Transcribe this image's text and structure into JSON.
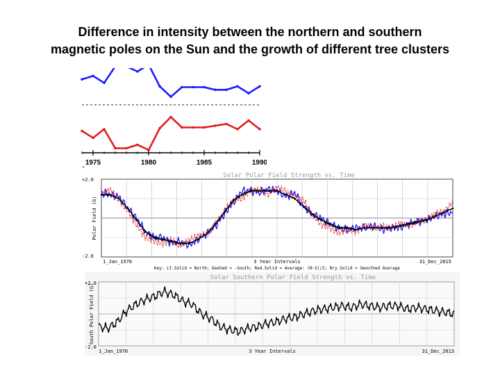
{
  "title": {
    "line1": "Difference in intensity between the northern and southern",
    "line2": "magnetic poles on the Sun and the growth of different tree clusters"
  },
  "colors": {
    "north_blue": "#1a1aff",
    "south_red": "#e41a1a",
    "average_black": "#000000",
    "grid": "#b0b0b0"
  },
  "chart_data": [
    {
      "type": "line",
      "title": "",
      "xlabel": "",
      "ylabel": "",
      "x_ticks": [
        1975,
        1980,
        1985,
        1990
      ],
      "xlim": [
        1974,
        1990
      ],
      "grid": false,
      "legend_mark": "*",
      "series": [
        {
          "color": "#1a1aff",
          "x": [
            1974,
            1975,
            1976,
            1977,
            1978,
            1979,
            1980,
            1981,
            1982,
            1983,
            1984,
            1985,
            1986,
            1987,
            1988,
            1989,
            1990
          ],
          "y": [
            0.55,
            0.75,
            0.35,
            1.3,
            1.3,
            1.0,
            1.4,
            0.15,
            -0.45,
            0.1,
            0.1,
            0.1,
            -0.05,
            -0.05,
            0.15,
            -0.25,
            0.15
          ]
        },
        {
          "color": "#e41a1a",
          "x": [
            1974,
            1975,
            1976,
            1977,
            1978,
            1979,
            1980,
            1981,
            1982,
            1983,
            1984,
            1985,
            1986,
            1987,
            1988,
            1989,
            1990
          ],
          "y": [
            -0.1,
            -0.5,
            0.0,
            -1.1,
            -1.1,
            -0.9,
            -1.2,
            0.05,
            0.7,
            0.1,
            0.1,
            0.1,
            0.2,
            0.3,
            0.0,
            0.5,
            0.0
          ]
        }
      ]
    },
    {
      "type": "line",
      "title": "Solar Polar Field Strength vs. Time",
      "xlabel": "3 Year Intervals",
      "ylabel": "Polar Field (G)",
      "x_tick_labels": [
        "1_Jan_1976",
        "31_Dec_2015"
      ],
      "ylim": [
        -2.0,
        2.0
      ],
      "y_tick_labels": [
        "+2.0",
        "-2.0"
      ],
      "xlim": [
        1976,
        2016
      ],
      "grid": true,
      "legend": "Key: Lt.Solid = North; Dashed = -South; Red.Solid = Average: (N-S)/2; Bry.Solid = Smoothed Average",
      "series": [
        {
          "name": "North",
          "color": "#1a1aff",
          "x": [
            1976,
            1977,
            1978,
            1979,
            1980,
            1981,
            1982,
            1983,
            1984,
            1985,
            1986,
            1987,
            1988,
            1989,
            1990,
            1991,
            1992,
            1993,
            1994,
            1995,
            1996,
            1997,
            1998,
            1999,
            2000,
            2001,
            2002,
            2003,
            2004,
            2005,
            2006,
            2007,
            2008,
            2009,
            2010,
            2011,
            2012,
            2013,
            2014,
            2015,
            2016
          ],
          "y": [
            1.3,
            1.2,
            1.1,
            0.5,
            0.0,
            -0.7,
            -1.0,
            -1.0,
            -1.3,
            -1.2,
            -1.4,
            -1.1,
            -0.8,
            -0.4,
            0.2,
            0.8,
            1.4,
            1.4,
            1.3,
            1.5,
            1.4,
            1.1,
            1.3,
            0.6,
            0.2,
            0.0,
            -0.3,
            -0.5,
            -0.6,
            -0.5,
            -0.5,
            -0.4,
            -0.6,
            -0.5,
            -0.5,
            -0.3,
            -0.2,
            -0.1,
            0.1,
            0.2,
            0.3
          ]
        },
        {
          "name": "-South",
          "color": "#e41a1a",
          "x": [
            1976,
            1977,
            1978,
            1979,
            1980,
            1981,
            1982,
            1983,
            1984,
            1985,
            1986,
            1987,
            1988,
            1989,
            1990,
            1991,
            1992,
            1993,
            1994,
            1995,
            1996,
            1997,
            1998,
            1999,
            2000,
            2001,
            2002,
            2003,
            2004,
            2005,
            2006,
            2007,
            2008,
            2009,
            2010,
            2011,
            2012,
            2013,
            2014,
            2015,
            2016
          ],
          "y": [
            1.1,
            1.4,
            0.9,
            0.4,
            -0.3,
            -0.9,
            -1.1,
            -1.3,
            -1.1,
            -1.5,
            -1.2,
            -1.0,
            -0.9,
            -0.3,
            0.4,
            1.0,
            1.1,
            1.5,
            1.5,
            1.2,
            1.5,
            1.3,
            1.0,
            0.9,
            0.2,
            -0.3,
            -0.4,
            -0.7,
            -0.5,
            -0.7,
            -0.4,
            -0.6,
            -0.5,
            -0.6,
            -0.3,
            -0.4,
            -0.1,
            0.0,
            0.3,
            0.4,
            0.8
          ]
        },
        {
          "name": "Smoothed Average",
          "color": "#000000",
          "x": [
            1976,
            1977,
            1978,
            1979,
            1980,
            1981,
            1982,
            1983,
            1984,
            1985,
            1986,
            1987,
            1988,
            1989,
            1990,
            1991,
            1992,
            1993,
            1994,
            1995,
            1996,
            1997,
            1998,
            1999,
            2000,
            2001,
            2002,
            2003,
            2004,
            2005,
            2006,
            2007,
            2008,
            2009,
            2010,
            2011,
            2012,
            2013,
            2014,
            2015,
            2016
          ],
          "y": [
            1.2,
            1.2,
            1.0,
            0.5,
            -0.1,
            -0.7,
            -1.0,
            -1.1,
            -1.2,
            -1.3,
            -1.3,
            -1.1,
            -0.8,
            -0.3,
            0.3,
            0.9,
            1.2,
            1.4,
            1.4,
            1.4,
            1.4,
            1.2,
            1.0,
            0.6,
            0.2,
            -0.1,
            -0.3,
            -0.5,
            -0.5,
            -0.6,
            -0.5,
            -0.5,
            -0.5,
            -0.5,
            -0.4,
            -0.3,
            -0.2,
            -0.1,
            0.1,
            0.3,
            0.5
          ]
        }
      ]
    },
    {
      "type": "line",
      "title": "Solar Southern Polar Field Strength vs. Time",
      "xlabel": "3 Year Intervals",
      "ylabel": "South Polar Field (G)",
      "x_tick_labels": [
        "1_Jan_1976",
        "31_Dec_2013"
      ],
      "ylim": [
        -2.0,
        2.0
      ],
      "y_tick_labels": [
        "+2.0",
        "-2.0"
      ],
      "xlim": [
        1976,
        2014
      ],
      "grid": true,
      "series": [
        {
          "color": "#000000",
          "x": [
            1976,
            1977,
            1978,
            1979,
            1980,
            1981,
            1982,
            1983,
            1984,
            1985,
            1986,
            1987,
            1988,
            1989,
            1990,
            1991,
            1992,
            1993,
            1994,
            1995,
            1996,
            1997,
            1998,
            1999,
            2000,
            2001,
            2002,
            2003,
            2004,
            2005,
            2006,
            2007,
            2008,
            2009,
            2010,
            2011,
            2012,
            2013,
            2014
          ],
          "y": [
            -0.8,
            -0.9,
            -0.5,
            0.2,
            0.6,
            0.9,
            1.1,
            1.4,
            1.2,
            0.8,
            0.6,
            0.0,
            -0.3,
            -0.8,
            -1.0,
            -1.1,
            -0.9,
            -0.8,
            -0.6,
            -0.5,
            -0.3,
            -0.2,
            0.0,
            0.2,
            0.3,
            0.4,
            0.5,
            0.4,
            0.6,
            0.5,
            0.4,
            0.5,
            0.5,
            0.3,
            0.4,
            0.3,
            0.2,
            0.1,
            0.0
          ]
        }
      ]
    }
  ]
}
